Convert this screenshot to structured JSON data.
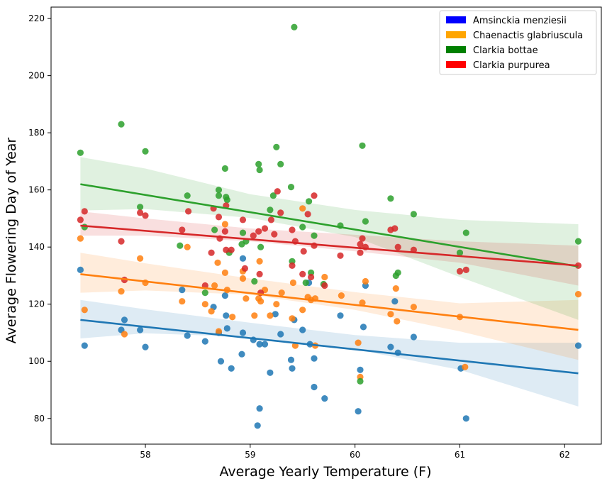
{
  "chart_data": {
    "type": "scatter",
    "xlabel": "Average Yearly Temperature (F)",
    "ylabel": "Average Flowering Day of Year",
    "xlim": [
      57.1,
      62.35
    ],
    "ylim": [
      71,
      224
    ],
    "xticks": [
      58,
      59,
      60,
      61,
      62
    ],
    "yticks": [
      80,
      100,
      120,
      140,
      160,
      180,
      200,
      220
    ],
    "grid": false,
    "legend_placement": "top-right",
    "regression": true,
    "confidence_bands": true,
    "series": [
      {
        "name": "Amsinckia menziesii",
        "color": "#1f77b4",
        "legend_color": "#0000ff",
        "fit": {
          "x": [
            57.38,
            62.13
          ],
          "y": [
            114.5,
            95.8
          ]
        },
        "band": {
          "x": [
            57.38,
            58.0,
            59.0,
            60.0,
            61.0,
            62.13
          ],
          "lower": [
            108.0,
            109.8,
            108.5,
            104.2,
            97.0,
            84.2
          ],
          "upper": [
            121.5,
            118.2,
            113.5,
            109.2,
            106.5,
            106.5
          ]
        },
        "points": [
          [
            57.38,
            132
          ],
          [
            57.42,
            105.5
          ],
          [
            57.77,
            111
          ],
          [
            57.8,
            114.5
          ],
          [
            57.95,
            111
          ],
          [
            58.0,
            105
          ],
          [
            58.35,
            125
          ],
          [
            58.4,
            109
          ],
          [
            58.57,
            107
          ],
          [
            58.65,
            119
          ],
          [
            58.7,
            110
          ],
          [
            58.72,
            100
          ],
          [
            58.76,
            123
          ],
          [
            58.77,
            116
          ],
          [
            58.78,
            111.5
          ],
          [
            58.82,
            97.5
          ],
          [
            58.93,
            136
          ],
          [
            58.92,
            102.5
          ],
          [
            58.93,
            110
          ],
          [
            59.03,
            107.5
          ],
          [
            59.07,
            77.5
          ],
          [
            59.09,
            83.5
          ],
          [
            59.09,
            106
          ],
          [
            59.14,
            106
          ],
          [
            59.19,
            96
          ],
          [
            59.24,
            116.5
          ],
          [
            59.29,
            109.5
          ],
          [
            59.39,
            100.5
          ],
          [
            59.4,
            97.5
          ],
          [
            59.42,
            114.5
          ],
          [
            59.5,
            111
          ],
          [
            59.56,
            127.5
          ],
          [
            59.57,
            106
          ],
          [
            59.61,
            101
          ],
          [
            59.61,
            91
          ],
          [
            59.71,
            87
          ],
          [
            59.86,
            116
          ],
          [
            60.03,
            82.5
          ],
          [
            60.05,
            97
          ],
          [
            60.08,
            112
          ],
          [
            60.1,
            126.5
          ],
          [
            60.34,
            105
          ],
          [
            60.38,
            121
          ],
          [
            60.41,
            103
          ],
          [
            60.56,
            108.5
          ],
          [
            61.01,
            97.5
          ],
          [
            61.06,
            80
          ],
          [
            62.13,
            105.5
          ]
        ]
      },
      {
        "name": "Chaenactis glabriuscula",
        "color": "#ff7f0e",
        "legend_color": "#ffa500",
        "fit": {
          "x": [
            57.38,
            62.13
          ],
          "y": [
            130.5,
            111.0
          ]
        },
        "band": {
          "x": [
            57.38,
            58.0,
            59.0,
            60.0,
            61.0,
            62.13
          ],
          "lower": [
            124.0,
            124.8,
            123.3,
            118.0,
            110.5,
            100.5
          ],
          "upper": [
            138.0,
            134.3,
            129.0,
            124.2,
            120.3,
            121.5
          ]
        },
        "points": [
          [
            57.38,
            143
          ],
          [
            57.42,
            118
          ],
          [
            57.77,
            124.5
          ],
          [
            57.8,
            109.5
          ],
          [
            57.95,
            136
          ],
          [
            58.0,
            127.5
          ],
          [
            58.35,
            121
          ],
          [
            58.4,
            140
          ],
          [
            58.57,
            120
          ],
          [
            58.63,
            117.5
          ],
          [
            58.66,
            126.5
          ],
          [
            58.69,
            134.5
          ],
          [
            58.7,
            110.5
          ],
          [
            58.76,
            148
          ],
          [
            58.76,
            131
          ],
          [
            58.78,
            125
          ],
          [
            58.83,
            115.5
          ],
          [
            58.93,
            129
          ],
          [
            58.93,
            131.5
          ],
          [
            58.96,
            122
          ],
          [
            59.04,
            116
          ],
          [
            59.08,
            122
          ],
          [
            59.09,
            135
          ],
          [
            59.1,
            121
          ],
          [
            59.14,
            125
          ],
          [
            59.19,
            116
          ],
          [
            59.25,
            120
          ],
          [
            59.3,
            124
          ],
          [
            59.4,
            115
          ],
          [
            59.41,
            127.5
          ],
          [
            59.43,
            105.5
          ],
          [
            59.5,
            153.5
          ],
          [
            59.5,
            118
          ],
          [
            59.55,
            122.5
          ],
          [
            59.58,
            121.5
          ],
          [
            59.62,
            105.5
          ],
          [
            59.62,
            122
          ],
          [
            59.71,
            129.5
          ],
          [
            59.87,
            123
          ],
          [
            60.03,
            106.5
          ],
          [
            60.05,
            94.5
          ],
          [
            60.07,
            120.5
          ],
          [
            60.1,
            128
          ],
          [
            60.34,
            116.5
          ],
          [
            60.39,
            125.5
          ],
          [
            60.4,
            114
          ],
          [
            60.56,
            119
          ],
          [
            61.0,
            115.5
          ],
          [
            61.05,
            98
          ],
          [
            62.13,
            123.5
          ]
        ]
      },
      {
        "name": "Clarkia bottae",
        "color": "#2ca02c",
        "legend_color": "#008000",
        "fit": {
          "x": [
            57.38,
            62.13
          ],
          "y": [
            162.0,
            133.2
          ]
        },
        "band": {
          "x": [
            57.38,
            58.0,
            59.0,
            60.0,
            61.0,
            62.13
          ],
          "lower": [
            152.8,
            153.3,
            150.2,
            143.5,
            129.5,
            114.5
          ],
          "upper": [
            171.5,
            167.5,
            158.5,
            153.0,
            149.5,
            148.0
          ]
        },
        "points": [
          [
            57.38,
            173
          ],
          [
            57.42,
            147
          ],
          [
            57.77,
            183
          ],
          [
            57.95,
            154
          ],
          [
            58.0,
            173.5
          ],
          [
            58.33,
            140.5
          ],
          [
            58.4,
            158
          ],
          [
            58.57,
            124
          ],
          [
            58.66,
            146
          ],
          [
            58.7,
            160
          ],
          [
            58.7,
            158
          ],
          [
            58.76,
            167.5
          ],
          [
            58.77,
            157.5
          ],
          [
            58.78,
            156.5
          ],
          [
            58.8,
            138
          ],
          [
            58.92,
            141
          ],
          [
            58.93,
            145
          ],
          [
            58.96,
            142
          ],
          [
            59.04,
            128
          ],
          [
            59.08,
            169
          ],
          [
            59.09,
            167
          ],
          [
            59.1,
            140
          ],
          [
            59.19,
            153
          ],
          [
            59.22,
            158
          ],
          [
            59.25,
            175
          ],
          [
            59.29,
            169
          ],
          [
            59.39,
            161
          ],
          [
            59.4,
            135
          ],
          [
            59.42,
            217
          ],
          [
            59.5,
            147
          ],
          [
            59.53,
            127.5
          ],
          [
            59.56,
            156
          ],
          [
            59.58,
            131
          ],
          [
            59.61,
            144
          ],
          [
            59.7,
            127
          ],
          [
            59.86,
            147.5
          ],
          [
            60.05,
            93
          ],
          [
            60.07,
            175.5
          ],
          [
            60.1,
            149
          ],
          [
            60.34,
            157
          ],
          [
            60.39,
            130
          ],
          [
            60.41,
            131
          ],
          [
            60.56,
            151.5
          ],
          [
            61.0,
            138
          ],
          [
            61.06,
            145
          ],
          [
            62.13,
            142
          ]
        ]
      },
      {
        "name": "Clarkia purpurea",
        "color": "#d62728",
        "legend_color": "#ff0000",
        "fit": {
          "x": [
            57.38,
            62.13
          ],
          "y": [
            147.5,
            133.5
          ]
        },
        "band": {
          "x": [
            57.38,
            58.0,
            59.0,
            60.0,
            61.0,
            62.13
          ],
          "lower": [
            144.0,
            144.0,
            142.0,
            138.5,
            134.5,
            126.5
          ],
          "upper": [
            152.5,
            150.0,
            146.5,
            144.3,
            142.0,
            140.5
          ]
        },
        "points": [
          [
            57.38,
            149.5
          ],
          [
            57.42,
            152.5
          ],
          [
            57.77,
            142
          ],
          [
            57.8,
            128.5
          ],
          [
            57.95,
            152
          ],
          [
            58.0,
            151
          ],
          [
            58.35,
            146
          ],
          [
            58.41,
            152.5
          ],
          [
            58.57,
            126.5
          ],
          [
            58.63,
            138
          ],
          [
            58.65,
            153.5
          ],
          [
            58.7,
            150.5
          ],
          [
            58.71,
            143
          ],
          [
            58.76,
            145.5
          ],
          [
            58.77,
            139
          ],
          [
            58.77,
            154.5
          ],
          [
            58.82,
            139
          ],
          [
            58.93,
            149.5
          ],
          [
            58.95,
            132.5
          ],
          [
            59.03,
            144
          ],
          [
            59.08,
            145.5
          ],
          [
            59.09,
            130.5
          ],
          [
            59.1,
            124
          ],
          [
            59.14,
            146.5
          ],
          [
            59.2,
            149.5
          ],
          [
            59.23,
            144.5
          ],
          [
            59.26,
            159.5
          ],
          [
            59.29,
            152
          ],
          [
            59.4,
            146
          ],
          [
            59.4,
            133.5
          ],
          [
            59.43,
            142
          ],
          [
            59.5,
            130.5
          ],
          [
            59.51,
            138.5
          ],
          [
            59.55,
            151.5
          ],
          [
            59.58,
            129.5
          ],
          [
            59.61,
            158
          ],
          [
            59.61,
            140.5
          ],
          [
            59.71,
            126.5
          ],
          [
            59.86,
            137
          ],
          [
            60.05,
            141
          ],
          [
            60.05,
            138
          ],
          [
            60.07,
            143
          ],
          [
            60.1,
            140
          ],
          [
            60.34,
            146
          ],
          [
            60.38,
            146.5
          ],
          [
            60.41,
            140
          ],
          [
            60.56,
            139
          ],
          [
            61.0,
            131.5
          ],
          [
            61.06,
            132
          ],
          [
            62.13,
            133.5
          ]
        ]
      }
    ]
  }
}
